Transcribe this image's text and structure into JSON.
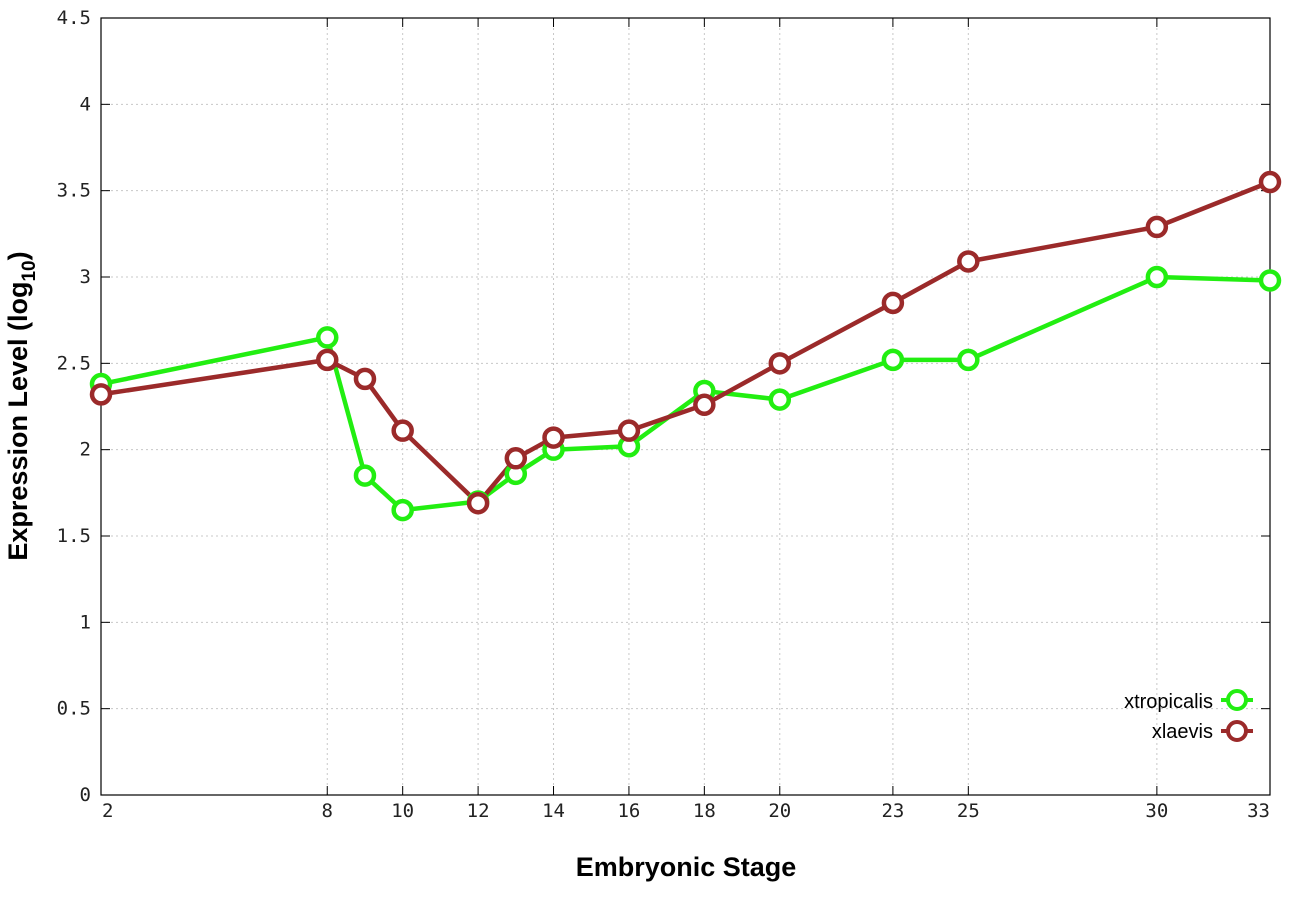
{
  "chart_data": {
    "type": "line",
    "title": "",
    "xlabel": "Embryonic Stage",
    "ylabel": "Expression Level (log",
    "ylabel_subscript": "10",
    "ylabel_suffix": ")",
    "xlim": [
      2,
      33
    ],
    "ylim": [
      0,
      4.5
    ],
    "x_ticks": [
      2,
      8,
      10,
      12,
      14,
      16,
      18,
      20,
      23,
      25,
      30,
      33
    ],
    "y_ticks": [
      "0",
      "0.5",
      "1",
      "1.5",
      "2",
      "2.5",
      "3",
      "3.5",
      "4",
      "4.5"
    ],
    "grid": true,
    "legend_position": "bottom-right",
    "x": [
      2,
      8,
      9,
      10,
      12,
      13,
      14,
      16,
      18,
      20,
      23,
      25,
      30,
      33
    ],
    "series": [
      {
        "name": "xtropicalis",
        "color": "#22ee11",
        "values": [
          2.38,
          2.65,
          1.85,
          1.65,
          1.7,
          1.86,
          2.0,
          2.02,
          2.34,
          2.29,
          2.52,
          2.52,
          3.0,
          2.98
        ]
      },
      {
        "name": "xlaevis",
        "color": "#9b2a2a",
        "values": [
          2.32,
          2.52,
          2.41,
          2.11,
          1.69,
          1.95,
          2.07,
          2.11,
          2.26,
          2.5,
          2.85,
          3.09,
          3.29,
          3.55
        ]
      }
    ]
  }
}
